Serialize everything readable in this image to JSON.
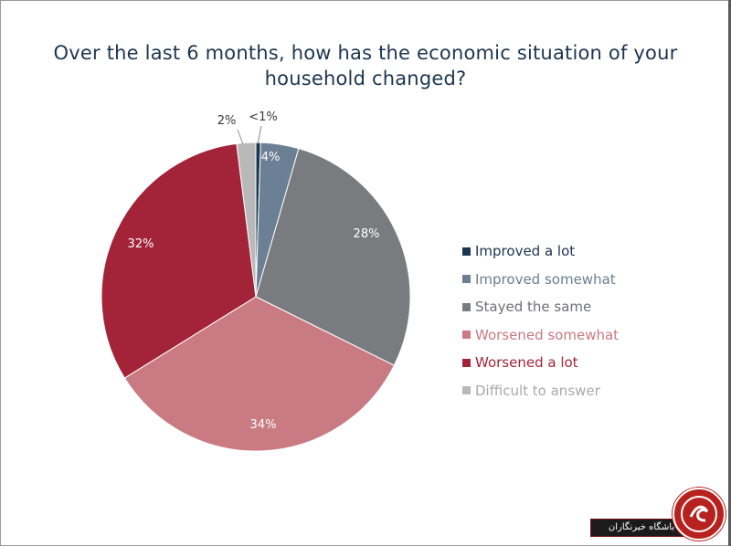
{
  "chart_data": {
    "type": "pie",
    "title": "Over the last 6 months, how has the economic situation of your household changed?",
    "title_lines": [
      "Over the last 6 months, how has the economic situation of your",
      "household changed?"
    ],
    "start_angle_deg": 0,
    "direction": "clockwise",
    "legend_position": "right",
    "slices": [
      {
        "name": "Improved a lot",
        "value": 0.5,
        "label": "<1%",
        "color": "#1a3552",
        "legend_text_color": "#1d3550"
      },
      {
        "name": "Improved somewhat",
        "value": 4,
        "label": "4%",
        "color": "#6b7f95",
        "legend_text_color": "#6b7f95"
      },
      {
        "name": "Stayed the same",
        "value": 28,
        "label": "28%",
        "color": "#7a7b7f",
        "legend_text_color": "#6f7074"
      },
      {
        "name": "Worsened somewhat",
        "value": 34,
        "label": "34%",
        "color": "#c97a83",
        "legend_text_color": "#c97a83"
      },
      {
        "name": "Worsened a lot",
        "value": 32,
        "label": "32%",
        "color": "#a32438",
        "legend_text_color": "#a32438"
      },
      {
        "name": "Difficult to answer",
        "value": 2,
        "label": "2%",
        "color": "#b9b9b9",
        "legend_text_color": "#a9a9a9"
      }
    ]
  },
  "watermark": {
    "text": "باشگاه خبرنگاران"
  }
}
